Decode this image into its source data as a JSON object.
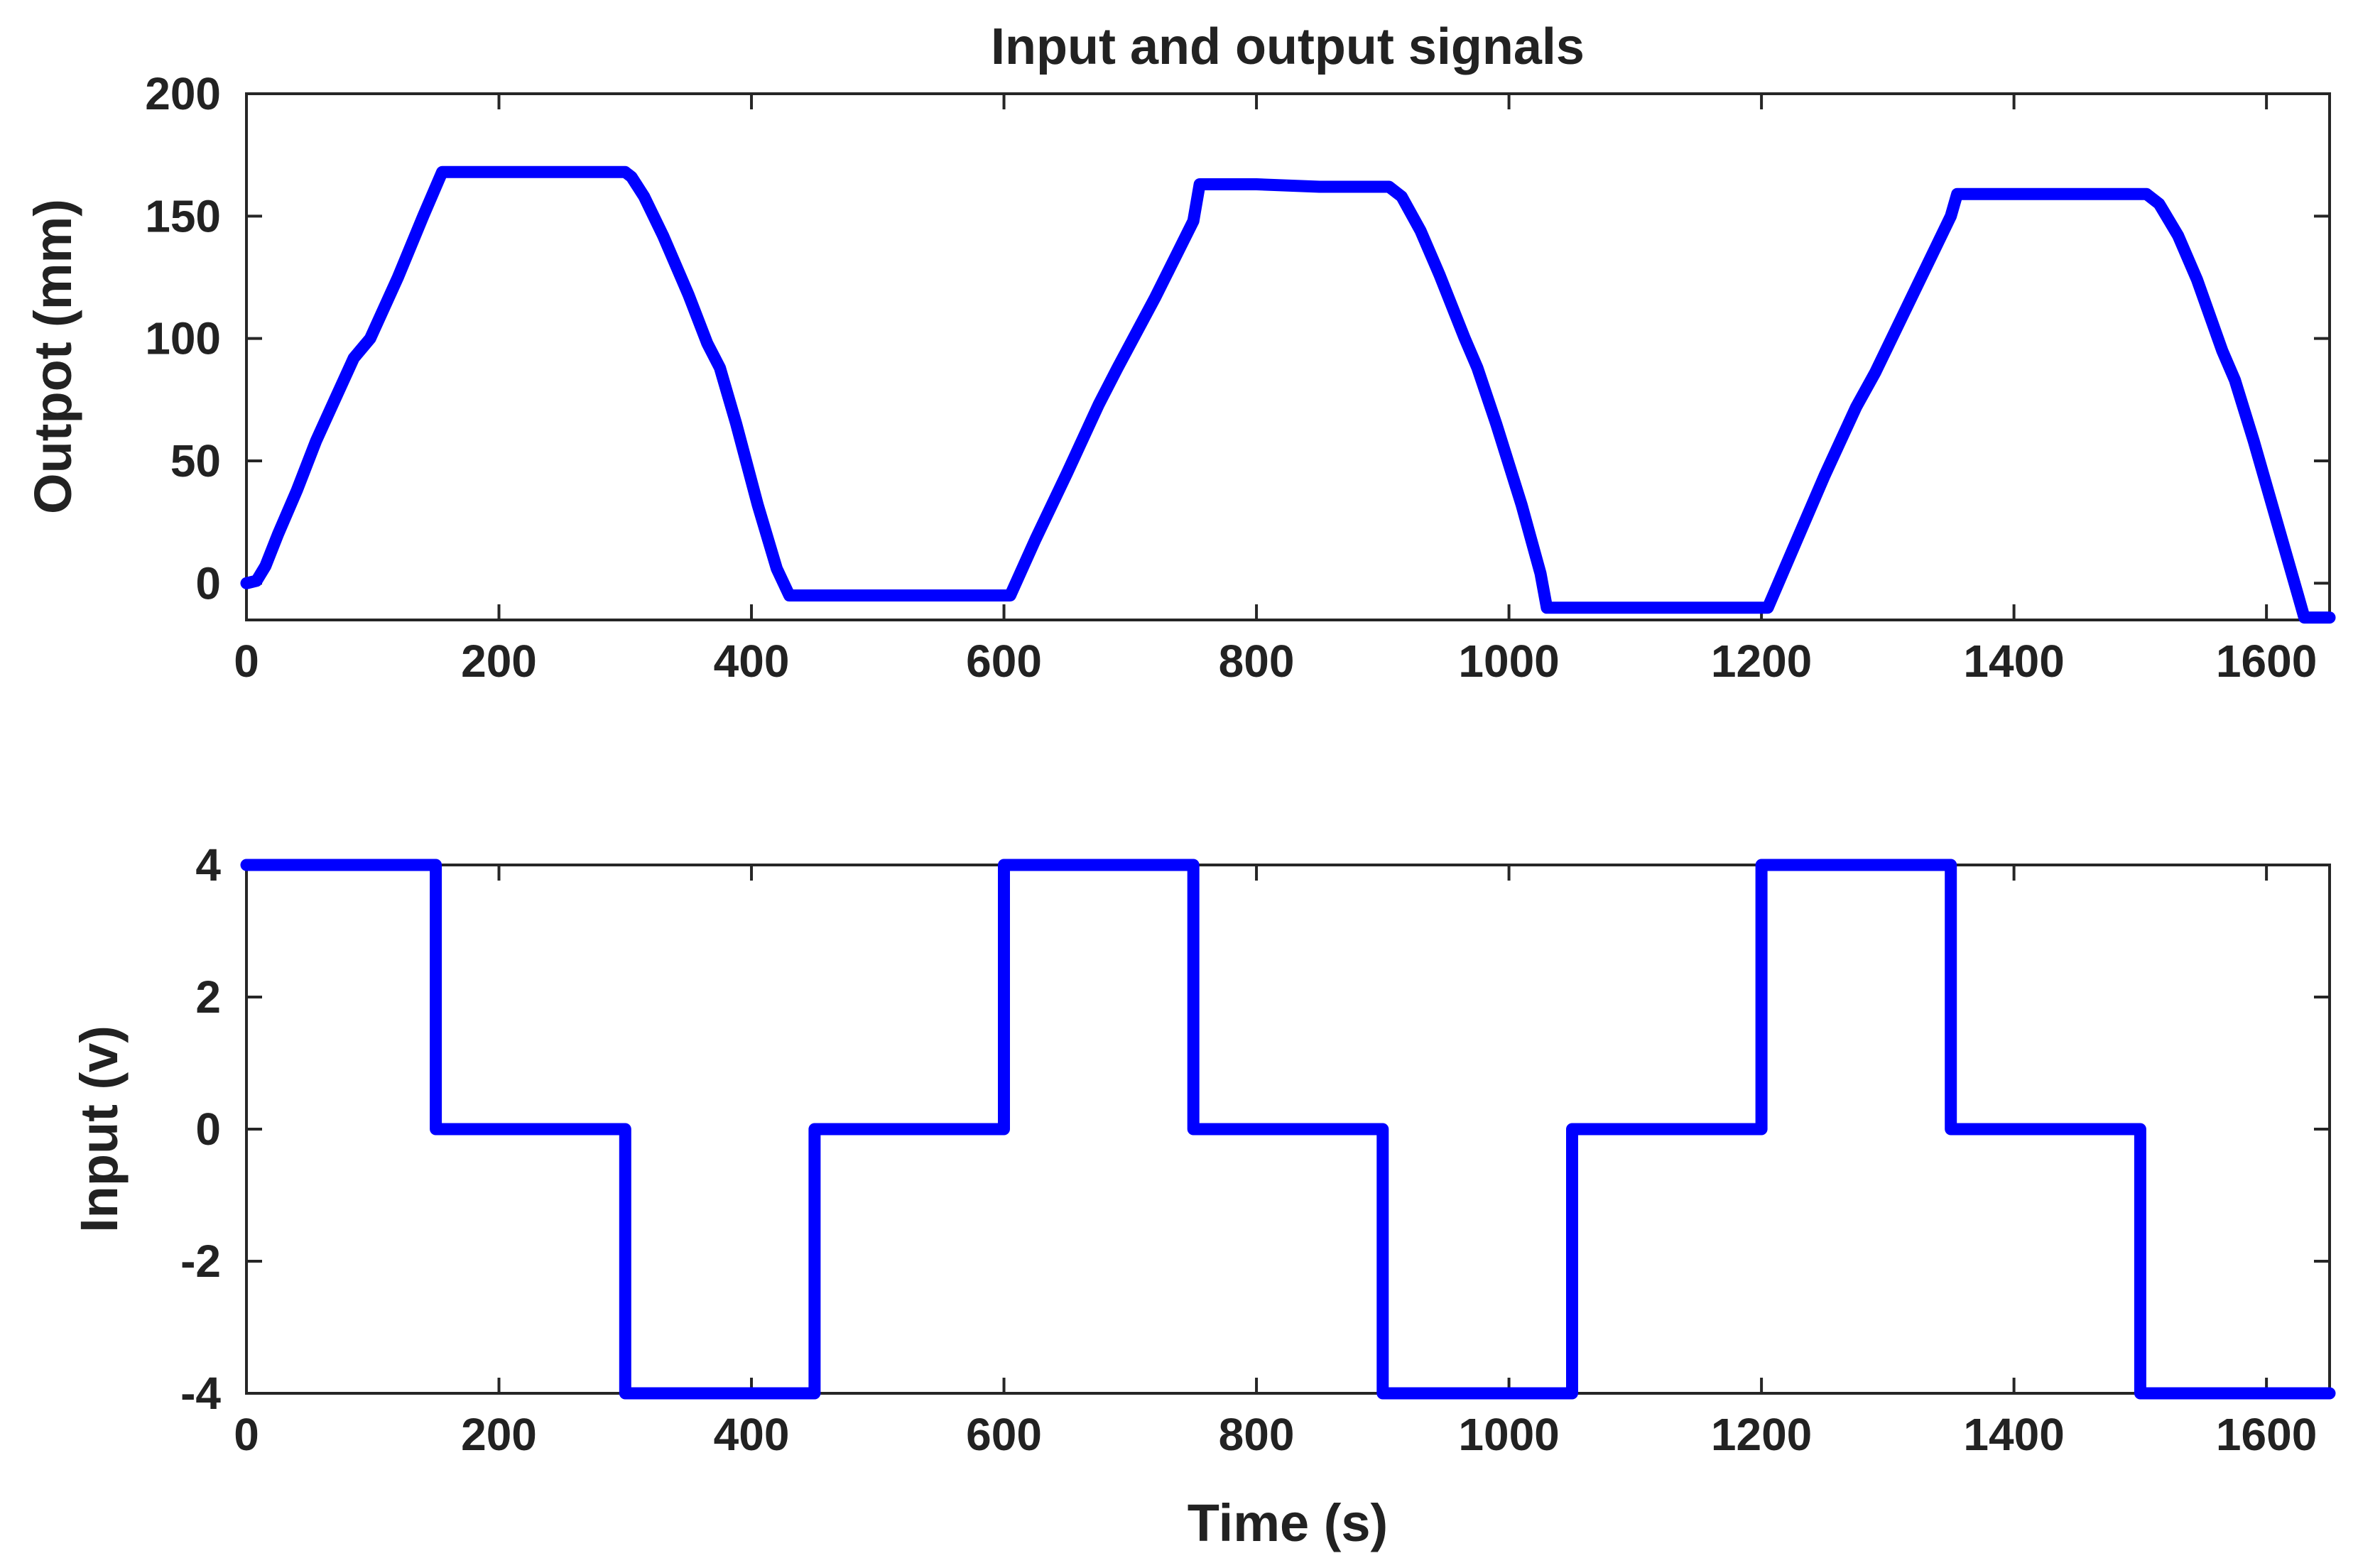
{
  "chart_data": [
    {
      "type": "line",
      "title": "Input and output signals",
      "xlabel": "",
      "ylabel": "Outpot (mm)",
      "xlim": [
        0,
        1650
      ],
      "ylim": [
        -15,
        200
      ],
      "xticks": [
        0,
        200,
        400,
        600,
        800,
        1000,
        1200,
        1400,
        1600
      ],
      "yticks": [
        0,
        50,
        100,
        150,
        200
      ],
      "grid": false,
      "legend": "none",
      "color": "#0000ff",
      "series": [
        {
          "x": [
            0,
            8,
            15,
            25,
            40,
            55,
            70,
            85,
            98,
            120,
            140,
            155,
            200,
            250,
            300,
            305,
            315,
            330,
            350,
            365,
            375,
            388,
            405,
            420,
            430,
            500,
            550,
            600,
            605,
            625,
            650,
            675,
            690,
            720,
            750,
            755,
            800,
            850,
            905,
            915,
            930,
            945,
            965,
            975,
            990,
            1010,
            1025,
            1030,
            1100,
            1150,
            1200,
            1205,
            1225,
            1250,
            1275,
            1290,
            1320,
            1350,
            1355,
            1400,
            1450,
            1505,
            1515,
            1530,
            1545,
            1565,
            1575,
            1590,
            1610,
            1625,
            1630,
            1650
          ],
          "y": [
            0,
            1,
            7,
            20,
            38,
            58,
            75,
            92,
            100,
            125,
            150,
            168,
            168,
            168,
            168,
            166,
            158,
            142,
            118,
            98,
            88,
            65,
            32,
            6,
            -5,
            -5,
            -5,
            -5,
            -5,
            18,
            45,
            73,
            88,
            117,
            148,
            163,
            163,
            162,
            162,
            158,
            144,
            126,
            100,
            88,
            65,
            32,
            4,
            -10,
            -10,
            -10,
            -10,
            -10,
            14,
            44,
            72,
            86,
            118,
            150,
            159,
            159,
            159,
            159,
            155,
            142,
            124,
            95,
            83,
            58,
            22,
            -5,
            -14,
            -14
          ]
        }
      ]
    },
    {
      "type": "line",
      "title": "",
      "xlabel": "Time (s)",
      "ylabel": "Input (v)",
      "xlim": [
        0,
        1650
      ],
      "ylim": [
        -4,
        4
      ],
      "xticks": [
        0,
        200,
        400,
        600,
        800,
        1000,
        1200,
        1400,
        1600
      ],
      "yticks": [
        -4,
        -2,
        0,
        2,
        4
      ],
      "grid": false,
      "legend": "none",
      "color": "#0000ff",
      "series": [
        {
          "x": [
            0,
            150,
            150,
            300,
            300,
            450,
            450,
            600,
            600,
            750,
            750,
            900,
            900,
            1050,
            1050,
            1200,
            1200,
            1350,
            1350,
            1500,
            1500,
            1650
          ],
          "y": [
            4,
            4,
            0,
            0,
            -4,
            -4,
            0,
            0,
            4,
            4,
            0,
            0,
            -4,
            -4,
            0,
            0,
            4,
            4,
            0,
            0,
            -4,
            -4
          ]
        }
      ]
    }
  ]
}
